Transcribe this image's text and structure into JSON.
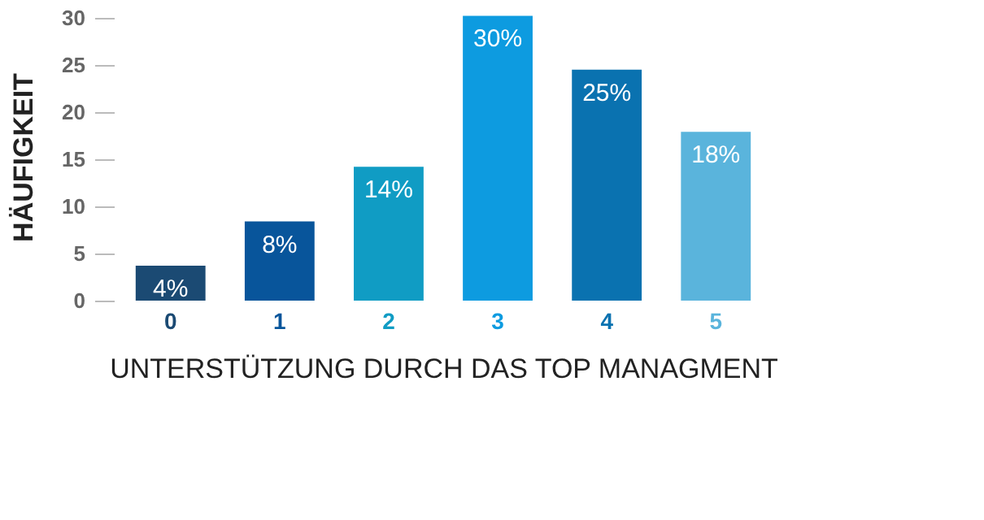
{
  "chart_data": {
    "type": "bar",
    "xlabel": "UNTERSTÜTZUNG DURCH DAS TOP MANAGMENT",
    "ylabel": "HÄUFIGKEIT",
    "categories": [
      "0",
      "1",
      "2",
      "3",
      "4",
      "5"
    ],
    "values": [
      3.7,
      8.4,
      14.2,
      30.2,
      24.5,
      17.9
    ],
    "colors": [
      "#1b4a73",
      "#08559b",
      "#109cc4",
      "#0d9be0",
      "#0a72b0",
      "#5ab4dc"
    ],
    "value_labels": [
      "4%",
      "8%",
      "14%",
      "30%",
      "25%",
      "18%"
    ],
    "ylim": [
      0,
      30.5
    ],
    "yticks": [
      0,
      5,
      10,
      15,
      20,
      25,
      30
    ],
    "grid": false,
    "legend": false
  }
}
